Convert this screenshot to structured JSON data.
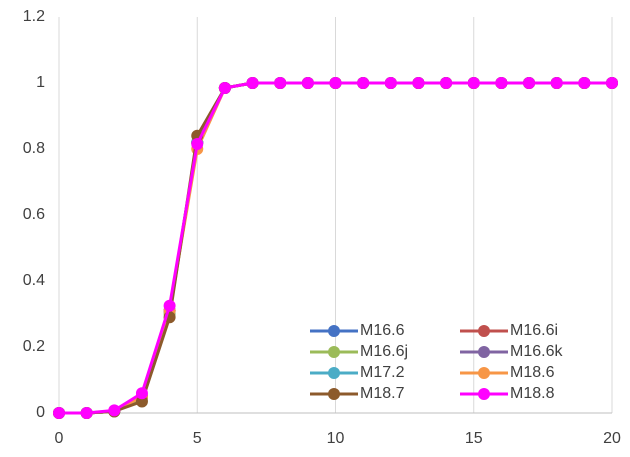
{
  "chart_data": {
    "type": "line",
    "x": [
      0,
      1,
      2,
      3,
      4,
      5,
      6,
      7,
      8,
      9,
      10,
      11,
      12,
      13,
      14,
      15,
      16,
      17,
      18,
      19,
      20
    ],
    "series": [
      {
        "name": "M16.6",
        "color": "#4472c4",
        "values": [
          0,
          0,
          0.005,
          0.05,
          0.31,
          0.82,
          0.985,
          1,
          1,
          1,
          1,
          1,
          1,
          1,
          1,
          1,
          1,
          1,
          1,
          1,
          1
        ]
      },
      {
        "name": "M16.6i",
        "color": "#c0504d",
        "values": [
          0,
          0,
          0.005,
          0.05,
          0.31,
          0.82,
          0.985,
          1,
          1,
          1,
          1,
          1,
          1,
          1,
          1,
          1,
          1,
          1,
          1,
          1,
          1
        ]
      },
      {
        "name": "M16.6j",
        "color": "#9bbb59",
        "values": [
          0,
          0,
          0.005,
          0.045,
          0.3,
          0.82,
          0.985,
          1,
          1,
          1,
          1,
          1,
          1,
          1,
          1,
          1,
          1,
          1,
          1,
          1,
          1
        ]
      },
      {
        "name": "M16.6k",
        "color": "#8064a2",
        "values": [
          0,
          0,
          0.005,
          0.05,
          0.31,
          0.82,
          0.985,
          1,
          1,
          1,
          1,
          1,
          1,
          1,
          1,
          1,
          1,
          1,
          1,
          1,
          1
        ]
      },
      {
        "name": "M17.2",
        "color": "#4bacc6",
        "values": [
          0,
          0,
          0.005,
          0.05,
          0.31,
          0.82,
          0.985,
          1,
          1,
          1,
          1,
          1,
          1,
          1,
          1,
          1,
          1,
          1,
          1,
          1,
          1
        ]
      },
      {
        "name": "M18.6",
        "color": "#f79646",
        "values": [
          0,
          0,
          0.005,
          0.05,
          0.31,
          0.8,
          0.985,
          1,
          1,
          1,
          1,
          1,
          1,
          1,
          1,
          1,
          1,
          1,
          1,
          1,
          1
        ]
      },
      {
        "name": "M18.7",
        "color": "#8c5a2b",
        "values": [
          0,
          0,
          0.005,
          0.035,
          0.29,
          0.84,
          0.985,
          1,
          1,
          1,
          1,
          1,
          1,
          1,
          1,
          1,
          1,
          1,
          1,
          1,
          1
        ]
      },
      {
        "name": "M18.8",
        "color": "#ff00ff",
        "values": [
          0,
          0,
          0.008,
          0.06,
          0.325,
          0.815,
          0.985,
          1,
          1,
          1,
          1,
          1,
          1,
          1,
          1,
          1,
          1,
          1,
          1,
          1,
          1
        ]
      }
    ],
    "xlim": [
      0,
      20
    ],
    "xticks": [
      0,
      5,
      10,
      15,
      20
    ],
    "ylim": [
      0,
      1.2
    ],
    "yticks": [
      0,
      0.2,
      0.4,
      0.6,
      0.8,
      1,
      1.2
    ],
    "grid": "x",
    "legend": "lower right"
  }
}
